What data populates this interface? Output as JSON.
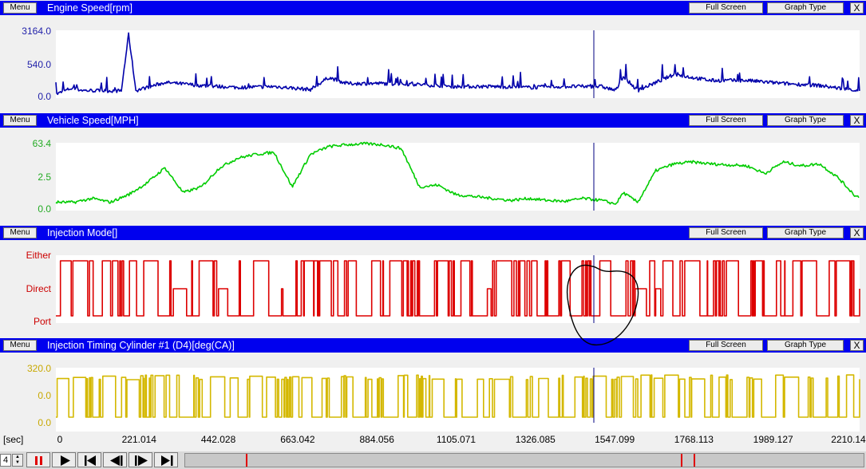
{
  "panels": [
    {
      "title": "Engine Speed[rpm]",
      "color": "#0000aa",
      "y_labels": [
        "3164.0",
        "540.0",
        "0.0"
      ]
    },
    {
      "title": "Vehicle Speed[MPH]",
      "color": "#00cc00",
      "y_labels": [
        "63.4",
        "2.5",
        "0.0"
      ]
    },
    {
      "title": "Injection Mode[]",
      "color": "#dd0000",
      "y_labels": [
        "Either",
        "Direct",
        "Port"
      ]
    },
    {
      "title": "Injection Timing Cylinder #1 (D4)[deg(CA)]",
      "color": "#d4b800",
      "y_labels": [
        "320.0",
        "0.0",
        "0.0"
      ]
    }
  ],
  "buttons": {
    "menu": "Menu",
    "full_screen": "Full Screen",
    "graph_type": "Graph Type",
    "close": "X"
  },
  "x_axis": {
    "unit": "[sec]",
    "ticks": [
      "0",
      "221.014",
      "442.028",
      "663.042",
      "884.056",
      "1105.071",
      "1326.085",
      "1547.099",
      "1768.113",
      "1989.127",
      "2210.14"
    ]
  },
  "playback": {
    "speed_value": "4"
  },
  "chart_data": [
    {
      "type": "line",
      "title": "Engine Speed[rpm]",
      "xlabel": "[sec]",
      "ylabel": "",
      "xlim": [
        0,
        2210.14
      ],
      "y_tick_labels": [
        "3164.0",
        "540.0",
        "0.0"
      ],
      "cursor_x": 1547.099,
      "x": [
        0,
        40,
        80,
        180,
        200,
        220,
        240,
        300,
        400,
        500,
        600,
        700,
        750,
        800,
        900,
        1000,
        1100,
        1200,
        1300,
        1400,
        1500,
        1540,
        1560,
        1600,
        1700,
        1800,
        1900,
        2000,
        2100,
        2200
      ],
      "values": [
        100,
        400,
        300,
        280,
        3100,
        300,
        400,
        700,
        550,
        450,
        500,
        350,
        950,
        650,
        650,
        600,
        500,
        500,
        450,
        500,
        500,
        300,
        1000,
        300,
        1100,
        800,
        800,
        650,
        550,
        300
      ]
    },
    {
      "type": "line",
      "title": "Vehicle Speed[MPH]",
      "xlabel": "[sec]",
      "ylabel": "",
      "xlim": [
        0,
        2210.14
      ],
      "y_tick_labels": [
        "63.4",
        "2.5",
        "0.0"
      ],
      "cursor_x": 1547.099,
      "x": [
        0,
        50,
        100,
        150,
        200,
        250,
        300,
        350,
        400,
        450,
        500,
        550,
        600,
        650,
        700,
        750,
        800,
        850,
        900,
        950,
        1000,
        1050,
        1100,
        1150,
        1200,
        1250,
        1300,
        1350,
        1400,
        1450,
        1500,
        1540,
        1560,
        1600,
        1650,
        1700,
        1750,
        1800,
        1850,
        1900,
        1950,
        2000,
        2050,
        2100,
        2150,
        2200
      ],
      "values": [
        2,
        2,
        6,
        2,
        10,
        22,
        38,
        12,
        18,
        38,
        48,
        52,
        54,
        18,
        52,
        60,
        62,
        63,
        62,
        58,
        18,
        20,
        10,
        8,
        6,
        4,
        6,
        4,
        3,
        6,
        4,
        0,
        12,
        2,
        35,
        42,
        44,
        42,
        41,
        40,
        32,
        44,
        40,
        42,
        28,
        8
      ]
    },
    {
      "type": "line",
      "title": "Injection Mode[]",
      "xlabel": "[sec]",
      "ylabel": "",
      "xlim": [
        0,
        2210.14
      ],
      "y_categories": [
        "Port",
        "Direct",
        "Either"
      ],
      "cursor_x": 1547.099,
      "note_levels": "0=Port,1=Direct,2=Either",
      "x": [
        0,
        10,
        20,
        30,
        60,
        70,
        200,
        210,
        400,
        420,
        700,
        720,
        1000,
        1020,
        1300,
        1320,
        1500,
        1510,
        1540,
        1550,
        1560,
        1570,
        1660,
        1670,
        1900,
        1910,
        2100,
        2110,
        2200
      ],
      "values": [
        0,
        2,
        0,
        2,
        0,
        2,
        0,
        2,
        0,
        2,
        0,
        2,
        0,
        2,
        0,
        2,
        0,
        1,
        0,
        2,
        0,
        2,
        0,
        2,
        0,
        2,
        0,
        2,
        0
      ]
    },
    {
      "type": "line",
      "title": "Injection Timing Cylinder #1 (D4)[deg(CA)]",
      "xlabel": "[sec]",
      "ylabel": "",
      "xlim": [
        0,
        2210.14
      ],
      "y_tick_labels": [
        "320.0",
        "0.0",
        "0.0"
      ],
      "cursor_x": 1547.099,
      "x": [
        0,
        10,
        30,
        40,
        100,
        110,
        300,
        310,
        500,
        510,
        800,
        810,
        1100,
        1110,
        1400,
        1410,
        1540,
        1550,
        1560,
        1570,
        1700,
        1710,
        2000,
        2010,
        2200
      ],
      "values": [
        0,
        20,
        20,
        240,
        240,
        20,
        220,
        20,
        230,
        20,
        230,
        20,
        220,
        20,
        220,
        20,
        240,
        20,
        230,
        20,
        230,
        20,
        220,
        20,
        20
      ]
    }
  ]
}
